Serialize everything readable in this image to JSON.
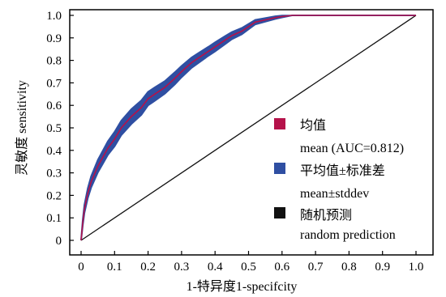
{
  "chart_data": {
    "type": "line",
    "xlabel": "1-特异度1-specifcity",
    "ylabel": "灵敏度 sensitivity",
    "xlim": [
      0,
      1.0
    ],
    "ylim": [
      0,
      1.0
    ],
    "x_ticks": [
      "0",
      "0.1",
      "0.2",
      "0.3",
      "0.4",
      "0.5",
      "0.6",
      "0.7",
      "0.8",
      "0.9",
      "1.0"
    ],
    "y_ticks": [
      "0",
      "0.1",
      "0.2",
      "0.3",
      "0.4",
      "0.5",
      "0.6",
      "0.7",
      "0.8",
      "0.9",
      "1.0"
    ],
    "grid": false,
    "legend_position": "lower-right",
    "series": [
      {
        "name": "均值",
        "name_secondary": "mean (AUC=0.812)",
        "color": "#b5124a",
        "x": [
          0,
          0.005,
          0.01,
          0.02,
          0.03,
          0.05,
          0.08,
          0.1,
          0.12,
          0.15,
          0.18,
          0.2,
          0.22,
          0.25,
          0.28,
          0.3,
          0.33,
          0.35,
          0.38,
          0.4,
          0.43,
          0.45,
          0.48,
          0.5,
          0.52,
          0.55,
          0.58,
          0.6,
          0.63,
          0.65,
          0.7,
          0.8,
          0.9,
          1.0
        ],
        "y": [
          0,
          0.08,
          0.14,
          0.21,
          0.26,
          0.33,
          0.41,
          0.45,
          0.5,
          0.55,
          0.59,
          0.63,
          0.65,
          0.68,
          0.72,
          0.75,
          0.79,
          0.81,
          0.84,
          0.86,
          0.89,
          0.91,
          0.93,
          0.95,
          0.97,
          0.98,
          0.99,
          0.995,
          1.0,
          1.0,
          1.0,
          1.0,
          1.0,
          1.0
        ]
      },
      {
        "name": "平均值±标准差",
        "name_secondary": "mean±stddev",
        "color": "#2f4fa2",
        "band_halfwidth": [
          0,
          0.012,
          0.018,
          0.022,
          0.025,
          0.028,
          0.03,
          0.032,
          0.032,
          0.033,
          0.032,
          0.03,
          0.03,
          0.028,
          0.027,
          0.025,
          0.023,
          0.022,
          0.02,
          0.02,
          0.018,
          0.016,
          0.014,
          0.012,
          0.01,
          0.008,
          0.006,
          0.004,
          0.0,
          0.0,
          0.0,
          0.0,
          0.0,
          0.0
        ]
      },
      {
        "name": "随机预测",
        "name_secondary": "random prediction",
        "color": "#111111",
        "x": [
          0,
          1.0
        ],
        "y": [
          0,
          1.0
        ]
      }
    ]
  }
}
